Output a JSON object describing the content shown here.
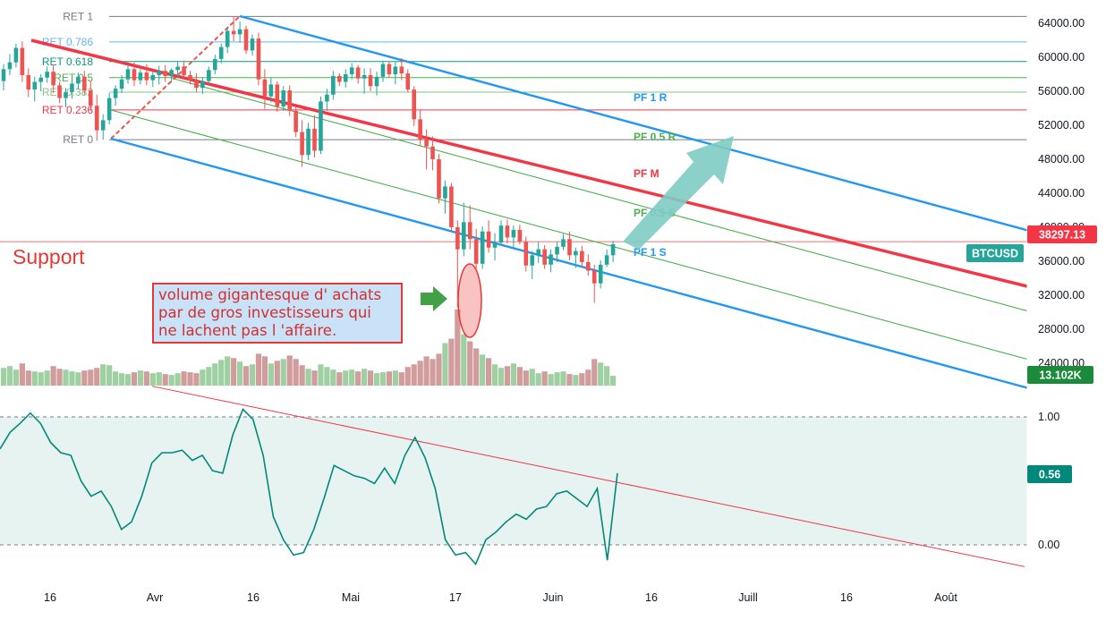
{
  "chart_data": [
    {
      "type": "candlestick",
      "symbol": "BTCUSD",
      "last_price": "38297.13",
      "volume_last": "13.102K",
      "x_ticks": [
        "16",
        "Avr",
        "16",
        "Mai",
        "17",
        "Juin",
        "16",
        "Juill",
        "16",
        "Août"
      ],
      "y_ticks": [
        "64000.00",
        "60000.00",
        "56000.00",
        "52000.00",
        "48000.00",
        "44000.00",
        "40000.00",
        "36000.00",
        "32000.00",
        "28000.00",
        "24000.00"
      ],
      "ylim": [
        21000,
        66200
      ],
      "fib_retracement": [
        {
          "label": "RET 1",
          "price": 64800,
          "color": "#787b86"
        },
        {
          "label": "RET 0.786",
          "price": 61800,
          "color": "#64b5f6"
        },
        {
          "label": "RET 0.618",
          "price": 59500,
          "color": "#089981"
        },
        {
          "label": "RET 0.5",
          "price": 57600,
          "color": "#4caf50"
        },
        {
          "label": "RET 0.382",
          "price": 55900,
          "color": "#81c784"
        },
        {
          "label": "RET 0.236",
          "price": 53800,
          "color": "#f23645"
        },
        {
          "label": "RET 0",
          "price": 50300,
          "color": "#787b86"
        }
      ],
      "pitchfork": [
        {
          "label": "PF 1 R",
          "color": "#2196f3"
        },
        {
          "label": "PF 0.5 R",
          "color": "#4caf50"
        },
        {
          "label": "PF M",
          "color": "#f23645"
        },
        {
          "label": "PF 0.5 S",
          "color": "#4caf50"
        },
        {
          "label": "PF 1 S",
          "color": "#2196f3"
        }
      ],
      "support_level": 38297.13,
      "support_label": "Support",
      "annotation": [
        "volume gigantesque d' achats",
        "par de gros investisseurs qui",
        "ne lachent pas l 'affaire."
      ],
      "candles": [
        [
          57200,
          59200,
          56100,
          58600
        ],
        [
          58600,
          60400,
          57900,
          59400
        ],
        [
          59400,
          61600,
          58800,
          61100
        ],
        [
          61100,
          61900,
          57100,
          57900
        ],
        [
          57900,
          58700,
          55300,
          56200
        ],
        [
          56200,
          57700,
          54800,
          57100
        ],
        [
          57100,
          58000,
          56000,
          57600
        ],
        [
          57600,
          58900,
          57000,
          58300
        ],
        [
          58300,
          59100,
          55800,
          56700
        ],
        [
          56700,
          57100,
          54600,
          55200
        ],
        [
          55200,
          56400,
          54100,
          55900
        ],
        [
          55900,
          57300,
          55100,
          56900
        ],
        [
          56900,
          58200,
          56200,
          57700
        ],
        [
          57700,
          58400,
          55600,
          56100
        ],
        [
          56100,
          57200,
          53700,
          54300
        ],
        [
          54300,
          55600,
          50200,
          51400
        ],
        [
          51400,
          53300,
          50300,
          52600
        ],
        [
          52600,
          55800,
          52100,
          55200
        ],
        [
          55200,
          56700,
          54300,
          56300
        ],
        [
          56300,
          57900,
          55800,
          57400
        ],
        [
          57400,
          59100,
          56900,
          58600
        ],
        [
          58600,
          59400,
          56600,
          57300
        ],
        [
          57300,
          58600,
          56800,
          58200
        ],
        [
          58200,
          59200,
          56700,
          57300
        ],
        [
          57300,
          58300,
          56500,
          57900
        ],
        [
          57900,
          59000,
          56800,
          58400
        ],
        [
          58400,
          59100,
          57100,
          57800
        ],
        [
          57800,
          58700,
          57000,
          58500
        ],
        [
          58500,
          59500,
          57600,
          58900
        ],
        [
          58900,
          59600,
          57500,
          57900
        ],
        [
          57900,
          58400,
          56800,
          57300
        ],
        [
          57300,
          58100,
          55900,
          56400
        ],
        [
          56400,
          57600,
          55700,
          57200
        ],
        [
          57200,
          58900,
          56800,
          58500
        ],
        [
          58500,
          60300,
          58000,
          59800
        ],
        [
          59800,
          61600,
          59300,
          61200
        ],
        [
          61200,
          63600,
          60500,
          63100
        ],
        [
          63100,
          64800,
          61900,
          62700
        ],
        [
          62700,
          64200,
          61700,
          63300
        ],
        [
          63300,
          63700,
          60400,
          60800
        ],
        [
          60800,
          62700,
          60200,
          62200
        ],
        [
          62200,
          62900,
          56700,
          57400
        ],
        [
          57400,
          58600,
          53900,
          55400
        ],
        [
          55400,
          57600,
          54700,
          56800
        ],
        [
          56800,
          57200,
          53600,
          54200
        ],
        [
          54200,
          56600,
          53700,
          56100
        ],
        [
          56100,
          56700,
          53100,
          53700
        ],
        [
          53700,
          54200,
          50600,
          51200
        ],
        [
          51200,
          52600,
          47100,
          48500
        ],
        [
          48500,
          52300,
          47900,
          51600
        ],
        [
          51600,
          53200,
          48200,
          49000
        ],
        [
          49000,
          55400,
          48600,
          54800
        ],
        [
          54800,
          56300,
          53700,
          55600
        ],
        [
          55600,
          58400,
          55000,
          57800
        ],
        [
          57800,
          58100,
          56600,
          57100
        ],
        [
          57100,
          58600,
          56400,
          58000
        ],
        [
          58000,
          59300,
          57400,
          58800
        ],
        [
          58800,
          59100,
          56900,
          57500
        ],
        [
          57500,
          58700,
          55700,
          57900
        ],
        [
          57900,
          58700,
          56000,
          56600
        ],
        [
          56600,
          58300,
          55500,
          57700
        ],
        [
          57700,
          59600,
          57100,
          59200
        ],
        [
          59200,
          59500,
          57600,
          58000
        ],
        [
          58000,
          59500,
          56800,
          58900
        ],
        [
          58900,
          59900,
          57300,
          58100
        ],
        [
          58100,
          58600,
          55900,
          56200
        ],
        [
          56200,
          56600,
          51900,
          52700
        ],
        [
          52700,
          53800,
          49600,
          50300
        ],
        [
          50300,
          51500,
          46800,
          49500
        ],
        [
          49500,
          50700,
          46700,
          48000
        ],
        [
          48000,
          48600,
          42800,
          43400
        ],
        [
          43400,
          45500,
          41600,
          44800
        ],
        [
          44800,
          45200,
          39600,
          40000
        ],
        [
          40000,
          40800,
          30600,
          37400
        ],
        [
          37400,
          42900,
          36600,
          40600
        ],
        [
          40600,
          42600,
          37400,
          38600
        ],
        [
          38600,
          39800,
          34800,
          35700
        ],
        [
          35700,
          40100,
          35100,
          39500
        ],
        [
          39500,
          40800,
          37000,
          37600
        ],
        [
          37600,
          39300,
          36100,
          38200
        ],
        [
          38200,
          40800,
          37900,
          40200
        ],
        [
          40200,
          40900,
          38100,
          38800
        ],
        [
          38800,
          40200,
          37500,
          39700
        ],
        [
          39700,
          40300,
          38000,
          38300
        ],
        [
          38300,
          38900,
          34800,
          35500
        ],
        [
          35500,
          37200,
          33900,
          36700
        ],
        [
          36700,
          38300,
          35800,
          37400
        ],
        [
          37400,
          37900,
          35100,
          35600
        ],
        [
          35600,
          37400,
          34700,
          36800
        ],
        [
          36800,
          38300,
          35900,
          37700
        ],
        [
          37700,
          39200,
          37300,
          38600
        ],
        [
          38600,
          39500,
          36100,
          36700
        ],
        [
          36700,
          37600,
          35200,
          37200
        ],
        [
          37200,
          37800,
          35400,
          35900
        ],
        [
          35900,
          36800,
          34300,
          34900
        ],
        [
          34900,
          35600,
          31100,
          33400
        ],
        [
          33400,
          36100,
          32800,
          35600
        ],
        [
          35600,
          37400,
          35300,
          36700
        ],
        [
          36700,
          38400,
          35900,
          38000
        ]
      ],
      "volume": [
        20,
        22,
        18,
        25,
        17,
        16,
        15,
        17,
        22,
        19,
        18,
        16,
        15,
        17,
        18,
        20,
        24,
        23,
        16,
        14,
        13,
        15,
        17,
        16,
        14,
        15,
        13,
        12,
        14,
        16,
        15,
        14,
        18,
        21,
        25,
        29,
        33,
        31,
        27,
        22,
        24,
        36,
        33,
        25,
        28,
        30,
        34,
        30,
        23,
        19,
        17,
        24,
        21,
        18,
        15,
        17,
        18,
        16,
        19,
        17,
        14,
        15,
        16,
        17,
        15,
        21,
        24,
        28,
        33,
        30,
        36,
        48,
        53,
        86,
        58,
        50,
        42,
        35,
        31,
        24,
        20,
        22,
        25,
        21,
        17,
        19,
        14,
        16,
        13,
        15,
        16,
        13,
        12,
        14,
        18,
        30,
        26,
        22,
        11
      ],
      "oscillator": {
        "label_value": "0.56",
        "levels": [
          "1.00",
          "0.00"
        ],
        "ylim": [
          -0.2,
          1.15
        ],
        "values": [
          0.75,
          0.88,
          0.95,
          1.03,
          0.95,
          0.8,
          0.72,
          0.7,
          0.5,
          0.38,
          0.42,
          0.3,
          0.12,
          0.18,
          0.38,
          0.64,
          0.72,
          0.72,
          0.74,
          0.66,
          0.7,
          0.58,
          0.56,
          0.86,
          1.06,
          0.98,
          0.7,
          0.22,
          0.04,
          -0.08,
          -0.06,
          0.12,
          0.36,
          0.62,
          0.58,
          0.54,
          0.52,
          0.48,
          0.6,
          0.48,
          0.7,
          0.84,
          0.68,
          0.44,
          0.04,
          -0.08,
          -0.06,
          -0.15,
          0.04,
          0.1,
          0.18,
          0.24,
          0.2,
          0.28,
          0.3,
          0.4,
          0.42,
          0.36,
          0.3,
          0.44,
          -0.12,
          0.56
        ]
      },
      "oscillator_trend": [
        [
          1.24,
          170
        ],
        [
          -0.17,
          1145
        ]
      ]
    }
  ]
}
